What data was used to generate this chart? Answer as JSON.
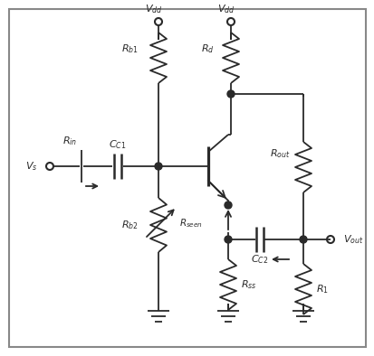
{
  "bg_color": "#ffffff",
  "line_color": "#2a2a2a",
  "line_width": 1.3,
  "fig_width": 4.14,
  "fig_height": 3.94,
  "dpi": 100,
  "border_color": "#888888"
}
